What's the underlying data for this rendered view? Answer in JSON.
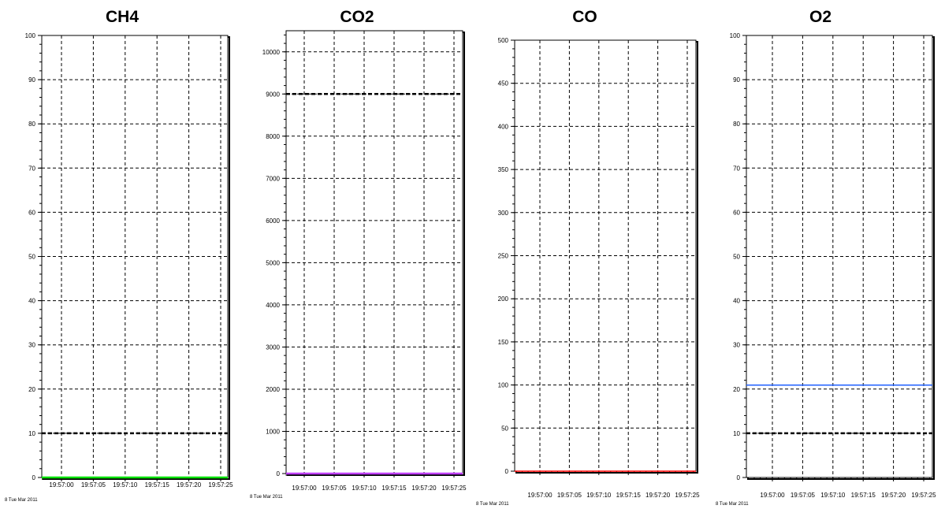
{
  "chart_data": [
    {
      "type": "line",
      "title": "CH4",
      "x_ticks": [
        "19:57:00",
        "19:57:05",
        "19:57:10",
        "19:57:15",
        "19:57:20",
        "19:57:25"
      ],
      "date_label": "8 Tue Mar 2011",
      "ylim": [
        0,
        100
      ],
      "y_ticks": [
        "0",
        "10",
        "20",
        "30",
        "40",
        "50",
        "60",
        "70",
        "80",
        "90",
        "100"
      ],
      "threshold": 10,
      "grid": true,
      "series": [
        {
          "color": "#00e000",
          "values": [
            0,
            0,
            0,
            0,
            0,
            0
          ]
        }
      ]
    },
    {
      "type": "line",
      "title": "CO2",
      "x_ticks": [
        "19:57:00",
        "19:57:05",
        "19:57:10",
        "19:57:15",
        "19:57:20",
        "19:57:25"
      ],
      "date_label": "8 Tue Mar 2011",
      "ylim": [
        0,
        10500
      ],
      "y_ticks": [
        "0",
        "1000",
        "2000",
        "3000",
        "4000",
        "5000",
        "6000",
        "7000",
        "8000",
        "9000",
        "10000"
      ],
      "threshold": 9000,
      "grid": true,
      "series": [
        {
          "color": "#c040ff",
          "values": [
            0,
            0,
            0,
            0,
            0,
            0
          ]
        }
      ]
    },
    {
      "type": "line",
      "title": "CO",
      "x_ticks": [
        "19:57:00",
        "19:57:05",
        "19:57:10",
        "19:57:15",
        "19:57:20",
        "19:57:25"
      ],
      "date_label": "8 Tue Mar 2011",
      "ylim": [
        0,
        500
      ],
      "y_ticks": [
        "0",
        "50",
        "100",
        "150",
        "200",
        "250",
        "300",
        "350",
        "400",
        "450",
        "500"
      ],
      "threshold": null,
      "grid": true,
      "series": [
        {
          "color": "#ff0000",
          "values": [
            0,
            0,
            0,
            0,
            0,
            0
          ]
        }
      ]
    },
    {
      "type": "line",
      "title": "O2",
      "x_ticks": [
        "19:57:00",
        "19:57:05",
        "19:57:10",
        "19:57:15",
        "19:57:20",
        "19:57:25"
      ],
      "date_label": "8 Tue Mar 2011",
      "ylim": [
        0,
        100
      ],
      "y_ticks": [
        "0",
        "10",
        "20",
        "30",
        "40",
        "50",
        "60",
        "70",
        "80",
        "90",
        "100"
      ],
      "threshold": 10,
      "grid": true,
      "series": [
        {
          "color": "#2060ff",
          "values": [
            20.9,
            20.9,
            20.9,
            20.9,
            20.9,
            20.9
          ]
        }
      ]
    }
  ]
}
